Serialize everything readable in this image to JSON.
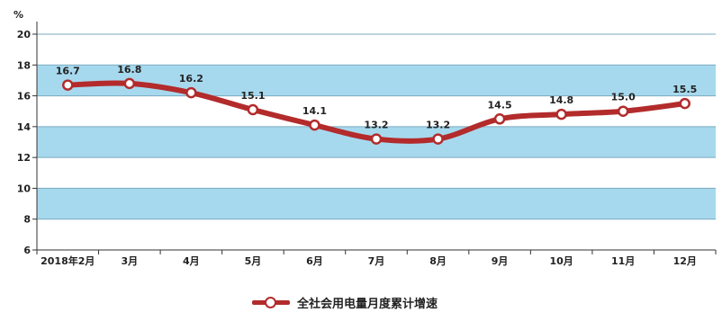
{
  "chart_data": {
    "type": "line",
    "unit": "%",
    "categories": [
      "2018年2月",
      "3月",
      "4月",
      "5月",
      "6月",
      "7月",
      "8月",
      "9月",
      "10月",
      "11月",
      "12月"
    ],
    "series": [
      {
        "name": "全社会用电量月度累计增速",
        "values": [
          16.7,
          16.8,
          16.2,
          15.1,
          14.1,
          13.2,
          13.2,
          14.5,
          14.8,
          15.0,
          15.5
        ],
        "labels": [
          "16.7",
          "16.8",
          "16.2",
          "15.1",
          "14.1",
          "13.2",
          "13.2",
          "14.5",
          "14.8",
          "15.0",
          "15.5"
        ]
      }
    ],
    "ylim": [
      6,
      20
    ],
    "yticks": [
      "6",
      "8",
      "10",
      "12",
      "14",
      "16",
      "18",
      "20"
    ],
    "grid": true,
    "legend": "bottom-center",
    "colors": {
      "line": "#b32b2b",
      "band": "#a7d9ee",
      "plot_bg": "#ffffff",
      "grid": "#7aaabf"
    }
  }
}
